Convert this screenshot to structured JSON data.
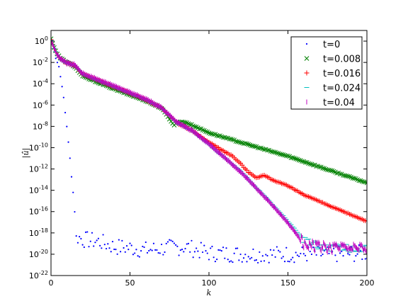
{
  "chart_data": {
    "type": "scatter",
    "title": "",
    "xlabel": "k",
    "ylabel": "|û|",
    "xlim": [
      0,
      200
    ],
    "ylim_log10": [
      -22,
      1
    ],
    "y_scale": "log",
    "x_ticks": [
      0,
      50,
      100,
      150,
      200
    ],
    "y_tick_exponents": [
      0,
      -2,
      -4,
      -6,
      -8,
      -10,
      -12,
      -14,
      -16,
      -18,
      -20,
      -22
    ],
    "x_tick_labels": [
      "0",
      "50",
      "100",
      "150",
      "200"
    ],
    "y_tick_labels": [
      "10^0",
      "10^-2",
      "10^-4",
      "10^-6",
      "10^-8",
      "10^-10",
      "10^-12",
      "10^-14",
      "10^-16",
      "10^-18",
      "10^-20",
      "10^-22"
    ],
    "legend_position": "top-right",
    "grid": false,
    "series": [
      {
        "name": "t=0",
        "marker": "dot",
        "color": "#0000ff",
        "k_log10_amplitude": [
          [
            0,
            0.1
          ],
          [
            1,
            -0.3
          ],
          [
            2,
            -1.0
          ],
          [
            3,
            -1.6
          ],
          [
            4,
            -2.0
          ],
          [
            5,
            -2.4
          ],
          [
            6,
            -3.3
          ],
          [
            7,
            -4.3
          ],
          [
            8,
            -5.3
          ],
          [
            9,
            -6.7
          ],
          [
            10,
            -8.0
          ],
          [
            11,
            -9.5
          ],
          [
            12,
            -11.0
          ],
          [
            13,
            -12.7
          ],
          [
            14,
            -14.2
          ],
          [
            15,
            -16.0
          ],
          [
            16,
            -18.3
          ],
          [
            20,
            -18.6
          ],
          [
            30,
            -18.8
          ],
          [
            40,
            -19.3
          ],
          [
            50,
            -19.4
          ],
          [
            60,
            -19.6
          ],
          [
            75,
            -19.4
          ],
          [
            85,
            -19.3
          ],
          [
            100,
            -19.9
          ],
          [
            120,
            -20.0
          ],
          [
            150,
            -20.0
          ],
          [
            180,
            -20.0
          ],
          [
            200,
            -19.9
          ]
        ]
      },
      {
        "name": "t=0.008",
        "marker": "x",
        "color": "#008000",
        "k_log10_amplitude": [
          [
            0,
            0.2
          ],
          [
            2,
            -0.6
          ],
          [
            4,
            -1.2
          ],
          [
            6,
            -1.6
          ],
          [
            10,
            -2.0
          ],
          [
            15,
            -2.4
          ],
          [
            20,
            -3.3
          ],
          [
            40,
            -4.5
          ],
          [
            60,
            -5.6
          ],
          [
            70,
            -6.3
          ],
          [
            75,
            -7.3
          ],
          [
            78,
            -7.9
          ],
          [
            80,
            -7.6
          ],
          [
            85,
            -7.6
          ],
          [
            100,
            -8.6
          ],
          [
            120,
            -9.5
          ],
          [
            150,
            -10.8
          ],
          [
            180,
            -12.3
          ],
          [
            200,
            -13.3
          ]
        ]
      },
      {
        "name": "t=0.016",
        "marker": "plus",
        "color": "#ff0000",
        "k_log10_amplitude": [
          [
            0,
            0.1
          ],
          [
            2,
            -0.7
          ],
          [
            4,
            -1.3
          ],
          [
            6,
            -1.7
          ],
          [
            10,
            -2.1
          ],
          [
            15,
            -2.3
          ],
          [
            20,
            -3.1
          ],
          [
            40,
            -4.3
          ],
          [
            60,
            -5.5
          ],
          [
            70,
            -6.3
          ],
          [
            75,
            -7.0
          ],
          [
            80,
            -7.7
          ],
          [
            90,
            -8.5
          ],
          [
            100,
            -9.5
          ],
          [
            115,
            -10.8
          ],
          [
            120,
            -11.5
          ],
          [
            125,
            -12.3
          ],
          [
            130,
            -12.8
          ],
          [
            135,
            -12.6
          ],
          [
            140,
            -13.0
          ],
          [
            150,
            -13.6
          ],
          [
            160,
            -14.4
          ],
          [
            180,
            -15.7
          ],
          [
            200,
            -16.9
          ]
        ]
      },
      {
        "name": "t=0.024",
        "marker": "hline",
        "color": "#00bfbf",
        "k_log10_amplitude": [
          [
            0,
            0.1
          ],
          [
            2,
            -0.7
          ],
          [
            4,
            -1.3
          ],
          [
            6,
            -1.7
          ],
          [
            10,
            -2.1
          ],
          [
            15,
            -2.3
          ],
          [
            20,
            -3.1
          ],
          [
            40,
            -4.3
          ],
          [
            60,
            -5.5
          ],
          [
            70,
            -6.3
          ],
          [
            75,
            -7.0
          ],
          [
            80,
            -7.7
          ],
          [
            90,
            -8.5
          ],
          [
            100,
            -9.7
          ],
          [
            120,
            -12.2
          ],
          [
            140,
            -15.3
          ],
          [
            150,
            -16.9
          ],
          [
            160,
            -18.6
          ],
          [
            170,
            -19.3
          ],
          [
            200,
            -19.5
          ]
        ]
      },
      {
        "name": "t=0.04",
        "marker": "vline",
        "color": "#bf00bf",
        "k_log10_amplitude": [
          [
            0,
            0.1
          ],
          [
            2,
            -0.7
          ],
          [
            4,
            -1.3
          ],
          [
            6,
            -1.7
          ],
          [
            10,
            -2.1
          ],
          [
            15,
            -2.3
          ],
          [
            20,
            -3.1
          ],
          [
            40,
            -4.3
          ],
          [
            60,
            -5.5
          ],
          [
            70,
            -6.3
          ],
          [
            75,
            -7.0
          ],
          [
            80,
            -7.7
          ],
          [
            90,
            -8.5
          ],
          [
            100,
            -9.7
          ],
          [
            120,
            -12.3
          ],
          [
            140,
            -15.4
          ],
          [
            150,
            -17.1
          ],
          [
            160,
            -19.0
          ],
          [
            170,
            -19.4
          ],
          [
            200,
            -19.6
          ]
        ]
      }
    ]
  }
}
